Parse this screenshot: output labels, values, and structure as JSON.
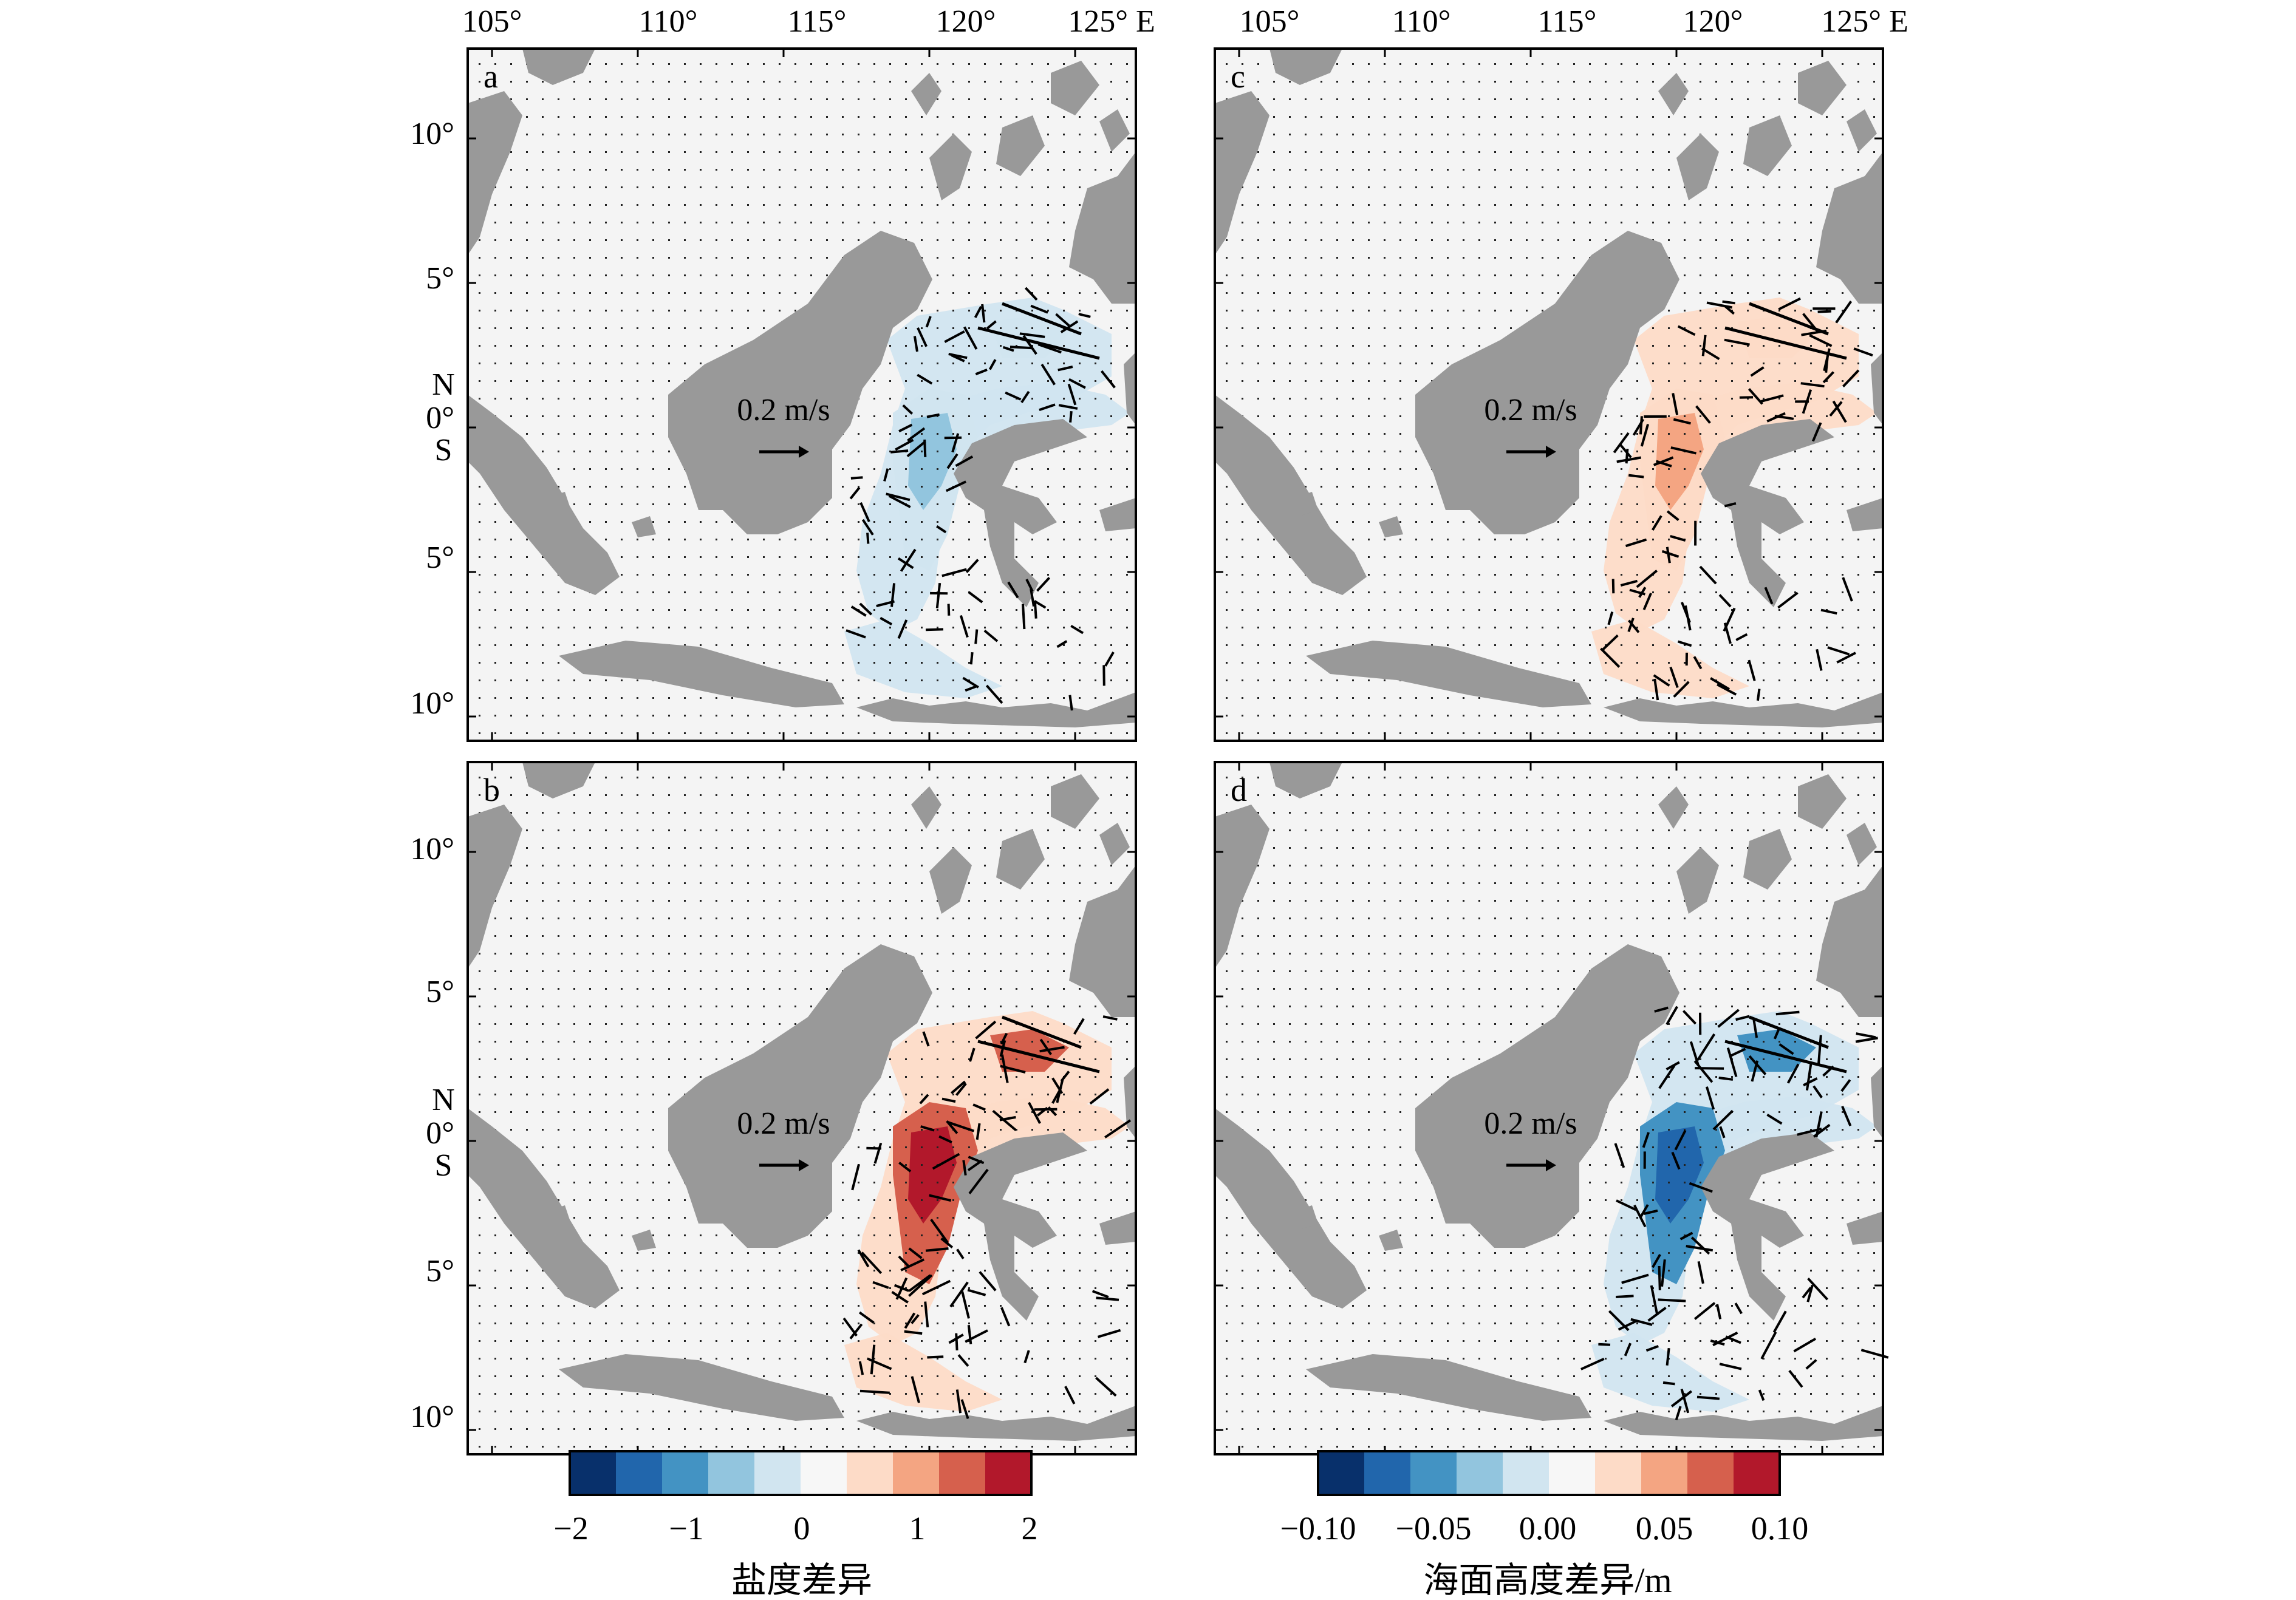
{
  "lon_ticks": [
    "105°",
    "110°",
    "115°",
    "120°",
    "125° E"
  ],
  "lat_ticks_top": [
    "10°",
    "5°"
  ],
  "lat_ticks_bottom": [
    "5°",
    "10°"
  ],
  "equator_labels": {
    "north": "N",
    "zero": "0°",
    "south": "S"
  },
  "reference_vector": "0.2 m/s",
  "panels": [
    {
      "letter": "a",
      "field": "salinity",
      "sign": -1,
      "strength": 0.45
    },
    {
      "letter": "b",
      "field": "salinity",
      "sign": 1,
      "strength": 1.0
    },
    {
      "letter": "c",
      "field": "ssh",
      "sign": 1,
      "strength": 0.5
    },
    {
      "letter": "d",
      "field": "ssh",
      "sign": -1,
      "strength": 1.0
    }
  ],
  "colorbars": [
    {
      "label": "盐度差异",
      "ticks": [
        "−2",
        "−1",
        "0",
        "1",
        "2"
      ],
      "range": [
        -2,
        2
      ]
    },
    {
      "label": "海面高度差异/m",
      "ticks": [
        "−0.10",
        "−0.05",
        "0.00",
        "0.05",
        "0.10"
      ],
      "range": [
        -0.1,
        0.1
      ]
    }
  ],
  "colors": {
    "land": "#999999",
    "ocean": "#f4f4f4",
    "scale": [
      "#08306b",
      "#2166ac",
      "#4393c3",
      "#92c5de",
      "#d1e5f0",
      "#f7f7f7",
      "#fddbc7",
      "#f4a582",
      "#d6604d",
      "#b2182b"
    ]
  }
}
